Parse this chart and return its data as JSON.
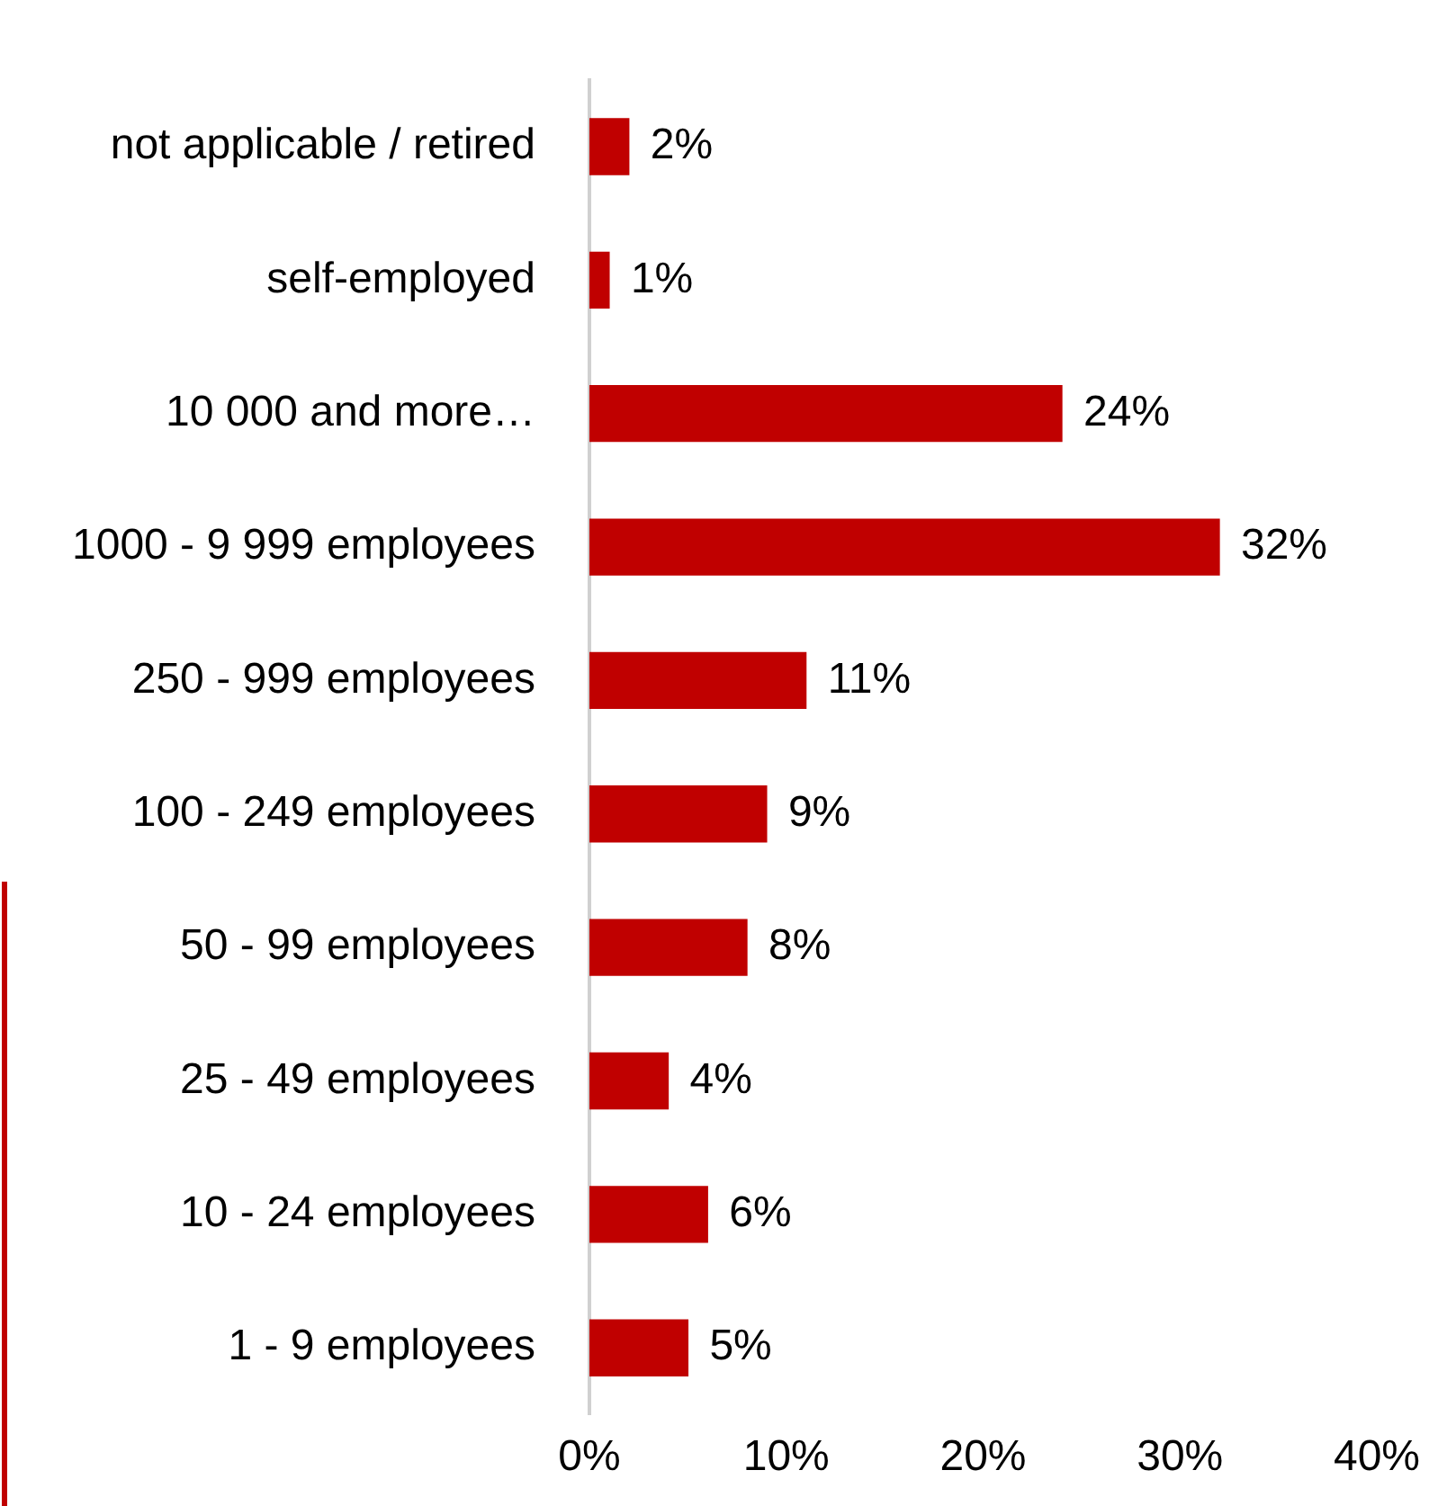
{
  "chart_data": {
    "type": "bar",
    "orientation": "horizontal",
    "categories": [
      "not applicable / retired",
      "self-employed",
      "10 000 and more…",
      "1000 - 9 999 employees",
      "250 - 999 employees",
      "100 - 249 employees",
      "50 - 99 employees",
      "25 - 49 employees",
      "10 - 24 employees",
      "1 - 9 employees"
    ],
    "values": [
      2,
      1,
      24,
      32,
      11,
      9,
      8,
      4,
      6,
      5
    ],
    "value_labels": [
      "2%",
      "1%",
      "24%",
      "32%",
      "11%",
      "9%",
      "8%",
      "4%",
      "6%",
      "5%"
    ],
    "color": "#c00000",
    "xlim": [
      0,
      40
    ],
    "xticks": [
      {
        "value": 0,
        "label": "0%"
      },
      {
        "value": 10,
        "label": "10%"
      },
      {
        "value": 20,
        "label": "20%"
      },
      {
        "value": 30,
        "label": "30%"
      },
      {
        "value": 40,
        "label": "40%"
      }
    ],
    "grid": false,
    "legend": false
  }
}
